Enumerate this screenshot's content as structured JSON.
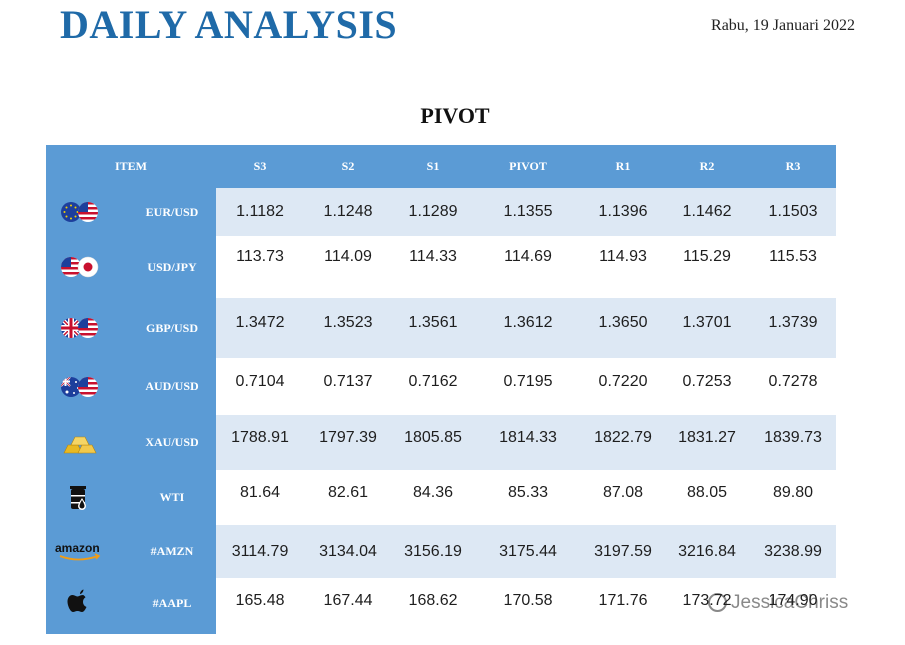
{
  "header": {
    "title": "DAILY ANALYSIS",
    "date": "Rabu, 19 Januari 2022"
  },
  "section": {
    "title": "PIVOT"
  },
  "table": {
    "columns": [
      "ITEM",
      "S3",
      "S2",
      "S1",
      "PIVOT",
      "R1",
      "R2",
      "R3"
    ],
    "rows": [
      {
        "icon": "eu-us-flags-icon",
        "name": "EUR/USD",
        "values": [
          "1.1182",
          "1.1248",
          "1.1289",
          "1.1355",
          "1.1396",
          "1.1462",
          "1.1503"
        ]
      },
      {
        "icon": "us-jp-flags-icon",
        "name": "USD/JPY",
        "values": [
          "113.73",
          "114.09",
          "114.33",
          "114.69",
          "114.93",
          "115.29",
          "115.53"
        ]
      },
      {
        "icon": "uk-us-flags-icon",
        "name": "GBP/USD",
        "values": [
          "1.3472",
          "1.3523",
          "1.3561",
          "1.3612",
          "1.3650",
          "1.3701",
          "1.3739"
        ]
      },
      {
        "icon": "au-us-flags-icon",
        "name": "AUD/USD",
        "values": [
          "0.7104",
          "0.7137",
          "0.7162",
          "0.7195",
          "0.7220",
          "0.7253",
          "0.7278"
        ]
      },
      {
        "icon": "gold-bars-icon",
        "name": "XAU/USD",
        "values": [
          "1788.91",
          "1797.39",
          "1805.85",
          "1814.33",
          "1822.79",
          "1831.27",
          "1839.73"
        ]
      },
      {
        "icon": "oil-barrel-icon",
        "name": "WTI",
        "values": [
          "81.64",
          "82.61",
          "84.36",
          "85.33",
          "87.08",
          "88.05",
          "89.80"
        ]
      },
      {
        "icon": "amazon-logo-icon",
        "name": "#AMZN",
        "values": [
          "3114.79",
          "3134.04",
          "3156.19",
          "3175.44",
          "3197.59",
          "3216.84",
          "3238.99"
        ]
      },
      {
        "icon": "apple-logo-icon",
        "name": "#AAPL",
        "values": [
          "165.48",
          "167.44",
          "168.62",
          "170.58",
          "171.76",
          "173.72",
          "174.90"
        ]
      }
    ]
  },
  "watermark": {
    "text": "JessicaChriss"
  },
  "logos": {
    "amazon": "amazon"
  },
  "colors": {
    "title": "#1f6aa8",
    "header_bg": "#5b9bd5",
    "alt_row": "#dde8f4"
  }
}
